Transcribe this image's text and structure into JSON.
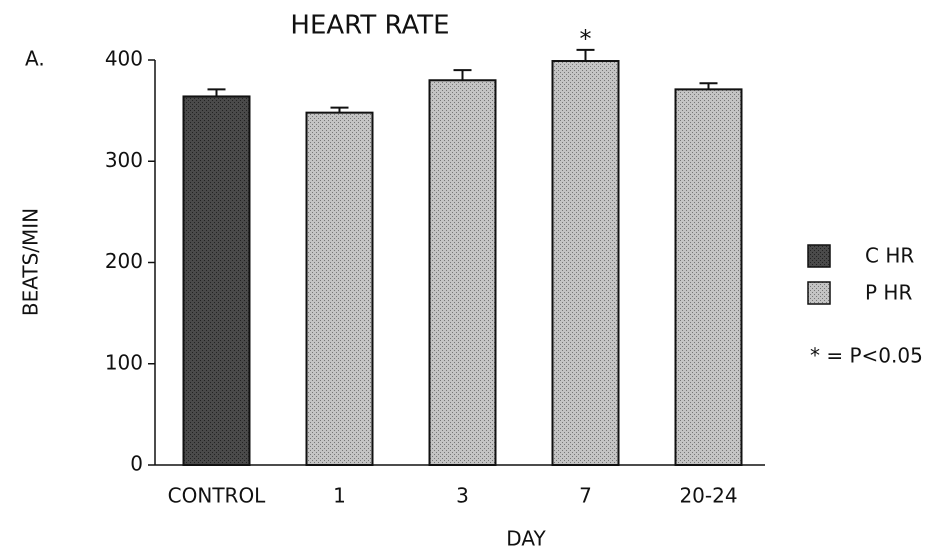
{
  "chart_data": {
    "type": "bar",
    "panel_label": "A.",
    "title": "HEART RATE",
    "x_label": "DAY",
    "y_label": "BEATS/MIN",
    "categories": [
      "CONTROL",
      "1",
      "3",
      "7",
      "20-24"
    ],
    "series": [
      {
        "name": "C HR",
        "color": "#4a4a4a",
        "values": [
          364,
          null,
          null,
          null,
          null
        ],
        "errors": [
          7,
          null,
          null,
          null,
          null
        ]
      },
      {
        "name": "P HR",
        "color": "#c4c4c4",
        "values": [
          null,
          348,
          380,
          399,
          371
        ],
        "errors": [
          null,
          5,
          10,
          11,
          6
        ]
      }
    ],
    "annotations": [
      {
        "text": "*",
        "x": "7"
      }
    ],
    "legend_note": "* = P<0.05",
    "legend": "right",
    "ylim": [
      0,
      400
    ],
    "yticks": [
      0,
      100,
      200,
      300,
      400
    ]
  }
}
